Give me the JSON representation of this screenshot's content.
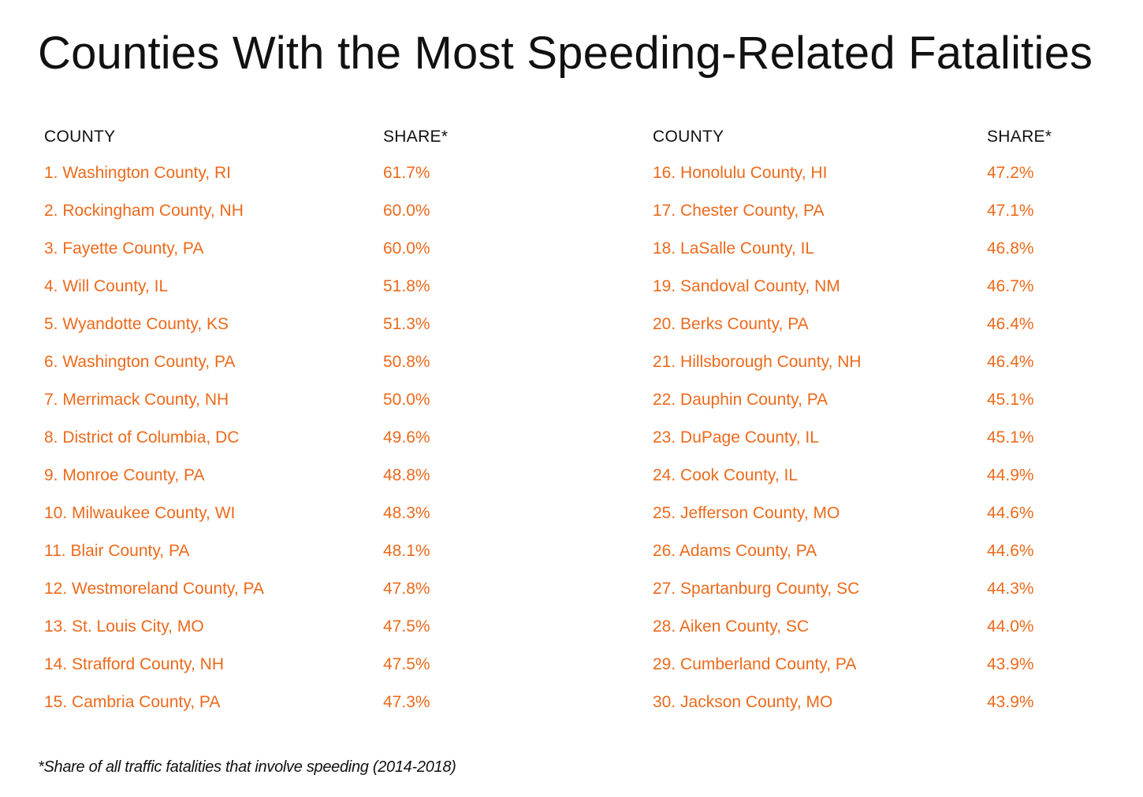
{
  "title": "Counties With the Most Speeding-Related Fatalities",
  "columns": {
    "county": "COUNTY",
    "share": "SHARE*"
  },
  "left_rows": [
    {
      "county": "1. Washington County, RI",
      "share": "61.7%"
    },
    {
      "county": "2. Rockingham County, NH",
      "share": "60.0%"
    },
    {
      "county": "3. Fayette County, PA",
      "share": "60.0%"
    },
    {
      "county": "4. Will County, IL",
      "share": "51.8%"
    },
    {
      "county": "5. Wyandotte County, KS",
      "share": "51.3%"
    },
    {
      "county": "6. Washington County, PA",
      "share": "50.8%"
    },
    {
      "county": "7. Merrimack County, NH",
      "share": "50.0%"
    },
    {
      "county": "8. District of Columbia, DC",
      "share": "49.6%"
    },
    {
      "county": "9. Monroe County, PA",
      "share": "48.8%"
    },
    {
      "county": "10. Milwaukee County, WI",
      "share": "48.3%"
    },
    {
      "county": "11. Blair County, PA",
      "share": "48.1%"
    },
    {
      "county": "12. Westmoreland County, PA",
      "share": "47.8%"
    },
    {
      "county": "13. St. Louis City, MO",
      "share": "47.5%"
    },
    {
      "county": "14. Strafford County, NH",
      "share": "47.5%"
    },
    {
      "county": "15. Cambria County, PA",
      "share": "47.3%"
    }
  ],
  "right_rows": [
    {
      "county": "16. Honolulu County, HI",
      "share": "47.2%"
    },
    {
      "county": "17. Chester County, PA",
      "share": "47.1%"
    },
    {
      "county": "18. LaSalle County, IL",
      "share": "46.8%"
    },
    {
      "county": "19. Sandoval County, NM",
      "share": "46.7%"
    },
    {
      "county": "20. Berks County, PA",
      "share": "46.4%"
    },
    {
      "county": "21. Hillsborough County, NH",
      "share": "46.4%"
    },
    {
      "county": "22. Dauphin County, PA",
      "share": "45.1%"
    },
    {
      "county": "23. DuPage County, IL",
      "share": "45.1%"
    },
    {
      "county": "24. Cook County, IL",
      "share": "44.9%"
    },
    {
      "county": "25. Jefferson County, MO",
      "share": "44.6%"
    },
    {
      "county": "26. Adams County, PA",
      "share": "44.6%"
    },
    {
      "county": "27. Spartanburg County, SC",
      "share": "44.3%"
    },
    {
      "county": "28. Aiken County, SC",
      "share": "44.0%"
    },
    {
      "county": "29. Cumberland County, PA",
      "share": "43.9%"
    },
    {
      "county": "30. Jackson County, MO",
      "share": "43.9%"
    }
  ],
  "footnote": "*Share of all traffic fatalities that involve speeding (2014-2018)",
  "colors": {
    "accent": "#ec6a1c",
    "text": "#111111",
    "background": "#ffffff"
  }
}
